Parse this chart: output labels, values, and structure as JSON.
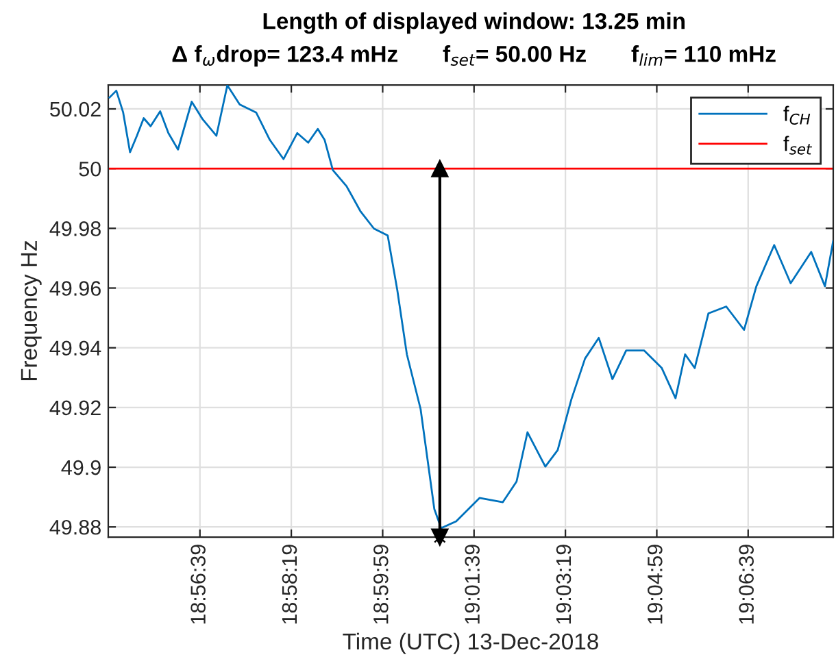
{
  "chart_data": {
    "type": "line",
    "title": "Length of displayed window: 13.25 min",
    "subtitle": "Δ f$_{ω}$drop= 123.4 mHz       f$_{set}$= 50.00 Hz       f$_{lim}$= 110 mHz",
    "xlabel": "Time (UTC) 13-Dec-2018",
    "ylabel": "Frequency Hz",
    "xlim": [
      18.9163,
      19.1367
    ],
    "ylim": [
      49.8766,
      50.028
    ],
    "xticks": [
      {
        "value": 18.944167,
        "label": "18:56:39"
      },
      {
        "value": 18.971944,
        "label": "18:58:19"
      },
      {
        "value": 18.999722,
        "label": "18:59:59"
      },
      {
        "value": 19.0275,
        "label": "19:01:39"
      },
      {
        "value": 19.055278,
        "label": "19:03:19"
      },
      {
        "value": 19.083056,
        "label": "19:04:59"
      },
      {
        "value": 19.110833,
        "label": "19:06:39"
      }
    ],
    "yticks": [
      49.88,
      {
        "value": 49.9,
        "label": "49.9"
      },
      49.92,
      49.94,
      49.96,
      49.98,
      {
        "value": 50,
        "label": "50"
      },
      50.02
    ],
    "grid": true,
    "legend": "top right",
    "series": [
      {
        "name": "f$_{CH}$",
        "type": "line",
        "color": "#0072bd",
        "marker": "none",
        "x": [
          18.91667,
          18.91875,
          18.92083,
          18.92292,
          18.925,
          18.92708,
          18.92917,
          18.93208,
          18.93458,
          18.9375,
          18.94167,
          18.945,
          18.94917,
          18.9525,
          18.95625,
          18.96125,
          18.96542,
          18.96958,
          18.97375,
          18.97708,
          18.98,
          18.98208,
          18.98458,
          18.98875,
          18.99292,
          18.99708,
          19.00125,
          19.00417,
          19.00708,
          19.01125,
          19.01542,
          19.0175,
          19.02208,
          19.02917,
          19.03625,
          19.04042,
          19.04375,
          19.04917,
          19.05292,
          19.05708,
          19.06125,
          19.06542,
          19.06958,
          19.07375,
          19.07917,
          19.08458,
          19.08875,
          19.09167,
          19.09458,
          19.09875,
          19.10417,
          19.10958,
          19.11333,
          19.11875,
          19.12375,
          19.13,
          19.13417,
          19.13667
        ],
        "values": [
          50.0238,
          50.0261,
          50.0188,
          50.0055,
          50.011,
          50.0169,
          50.0142,
          50.0192,
          50.0119,
          50.0064,
          50.0224,
          50.0165,
          50.011,
          50.0279,
          50.0215,
          50.0188,
          50.0096,
          50.0032,
          50.0119,
          50.0087,
          50.0133,
          50.0096,
          49.9995,
          49.9941,
          49.9858,
          49.9799,
          49.9776,
          49.9593,
          49.9378,
          49.9195,
          49.886,
          49.8796,
          49.8819,
          49.8897,
          49.8883,
          49.8952,
          49.9117,
          49.9002,
          49.9057,
          49.9227,
          49.9364,
          49.9433,
          49.9295,
          49.9391,
          49.9391,
          49.9332,
          49.9231,
          49.9378,
          49.9332,
          49.9515,
          49.9538,
          49.946,
          49.9606,
          49.9744,
          49.9616,
          49.9721,
          49.9606,
          49.9757
        ]
      },
      {
        "type": "scatter",
        "color": "#000000",
        "marker": "cross",
        "x": [
          19.0171
        ],
        "values": [
          49.8766
        ]
      },
      {
        "color": "#000000",
        "marker": "triangle",
        "x": [
          19.0171,
          19.0171
        ],
        "values": [
          49.8766,
          50
        ]
      }
    ],
    "ref_lines": [
      {
        "axis": "y",
        "value": 50,
        "label": "f$_{set}$",
        "color": "#ff0000",
        "line_style": "solid"
      }
    ]
  }
}
